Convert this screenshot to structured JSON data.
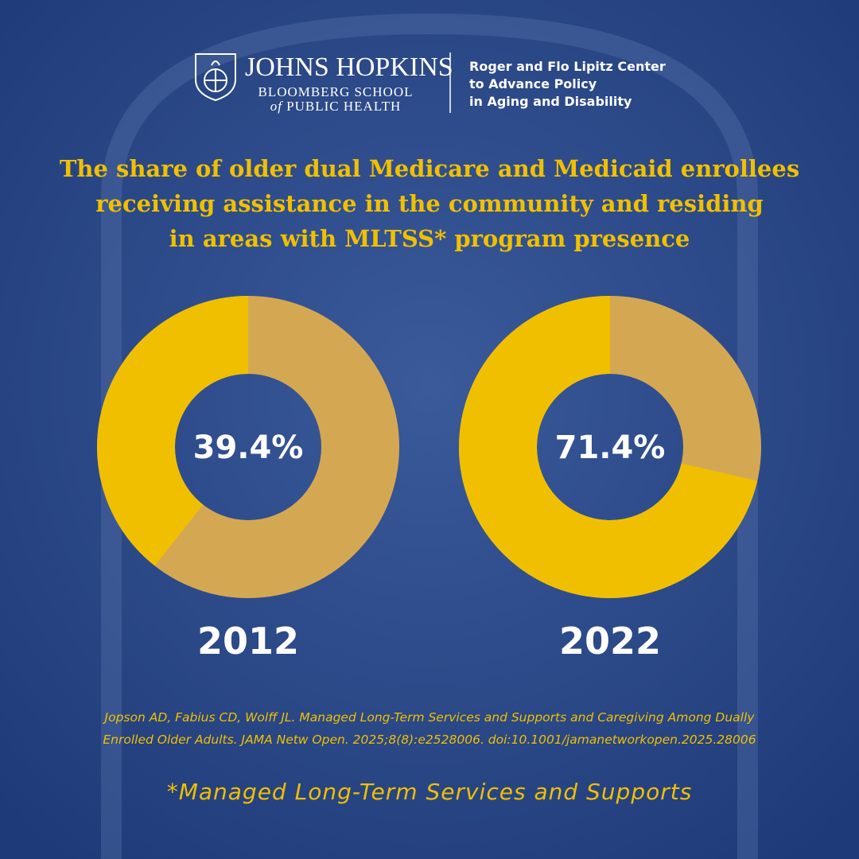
{
  "logo": {
    "name": "Johns Hopkins",
    "school_line1": "Bloomberg School",
    "school_line2_prefix": "of",
    "school_line2": "Public Health",
    "center_lines": [
      "Roger and Flo Lipitz Center",
      "to Advance Policy",
      "in Aging and Disability"
    ]
  },
  "title_lines": [
    "The share of older dual Medicare and Medicaid enrollees",
    "receiving assistance in the community and residing",
    "in areas with MLTSS* program presence"
  ],
  "chart_data": [
    {
      "type": "donut",
      "title": "2012",
      "values": [
        39.4
      ],
      "value_labels": [
        "39.4%"
      ],
      "color": "#f0c000",
      "track_color": "#d4a853"
    },
    {
      "type": "donut",
      "title": "2022",
      "values": [
        71.4
      ],
      "value_labels": [
        "71.4%"
      ],
      "color": "#f0c000",
      "track_color": "#d4a853"
    }
  ],
  "citation_lines": [
    "Jopson AD, Fabius CD, Wolff JL. Managed Long-Term Services and Supports and Caregiving Among Dually",
    "Enrolled Older Adults. JAMA Netw Open. 2025;8(8):e2528006. doi:10.1001/jamanetworkopen.2025.28006"
  ],
  "footnote": "*Managed Long-Term Services and Supports"
}
